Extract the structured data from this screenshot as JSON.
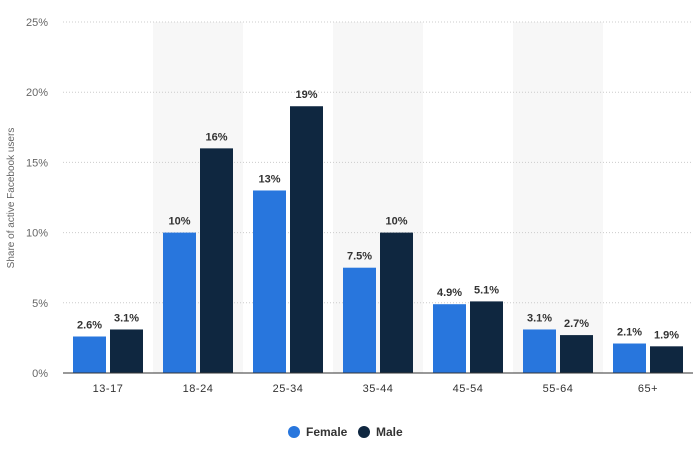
{
  "chart_data": {
    "type": "bar",
    "ylabel": "Share of active Facebook users",
    "ylim": [
      0,
      25
    ],
    "yticks": [
      "0%",
      "5%",
      "10%",
      "15%",
      "20%",
      "25%"
    ],
    "ytick_values": [
      0,
      5,
      10,
      15,
      20,
      25
    ],
    "categories": [
      "13-17",
      "18-24",
      "25-34",
      "35-44",
      "45-54",
      "55-64",
      "65+"
    ],
    "series": [
      {
        "name": "Female",
        "color": "#2876dd",
        "values": [
          2.6,
          10,
          13,
          7.5,
          4.9,
          3.1,
          2.1
        ],
        "labels": [
          "2.6%",
          "10%",
          "13%",
          "7.5%",
          "4.9%",
          "3.1%",
          "2.1%"
        ]
      },
      {
        "name": "Male",
        "color": "#0f2740",
        "values": [
          3.1,
          16,
          19,
          10,
          5.1,
          2.7,
          1.9
        ],
        "labels": [
          "3.1%",
          "16%",
          "19%",
          "10%",
          "5.1%",
          "2.7%",
          "1.9%"
        ]
      }
    ],
    "grid": true,
    "alternating_bands": true,
    "legend_position": "bottom-center"
  }
}
